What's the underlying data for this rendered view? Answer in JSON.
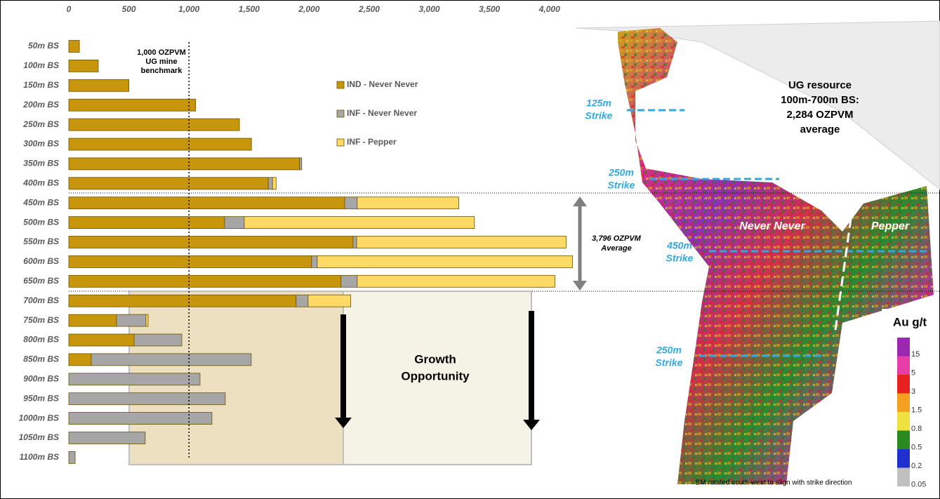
{
  "chart_data": {
    "type": "stacked-barh",
    "categories": [
      "50m BS",
      "100m BS",
      "150m BS",
      "200m BS",
      "250m BS",
      "300m BS",
      "350m BS",
      "400m BS",
      "450m BS",
      "500m BS",
      "550m BS",
      "600m BS",
      "650m BS",
      "700m BS",
      "750m BS",
      "800m BS",
      "850m BS",
      "900m BS",
      "950m BS",
      "1000m BS",
      "1050m BS",
      "1100m BS"
    ],
    "series": [
      {
        "name": "IND - Never Never",
        "color": "#c8960c",
        "values": [
          88,
          245,
          500,
          1055,
          1420,
          1520,
          1920,
          1660,
          2295,
          1296,
          2365,
          2020,
          2265,
          1891,
          397,
          543,
          187,
          null,
          null,
          null,
          null,
          null
        ]
      },
      {
        "name": "INF - Never Never",
        "color": "#a6a6a6",
        "values": [
          null,
          null,
          null,
          null,
          null,
          null,
          18,
          35,
          105,
          164,
          30,
          47,
          135,
          100,
          245,
          397,
          1331,
          1092,
          1302,
          1191,
          636,
          53
        ]
      },
      {
        "name": "INF - Pepper",
        "color": "#ffd966",
        "values": [
          null,
          null,
          null,
          null,
          null,
          null,
          null,
          30,
          845,
          1915,
          1743,
          2125,
          1645,
          355,
          18,
          null,
          null,
          null,
          null,
          null,
          null,
          null
        ]
      }
    ],
    "xlim": [
      0,
      4200
    ],
    "xticks": [
      0,
      500,
      {
        "value": 1000,
        "label": "1,000"
      },
      {
        "value": 1500,
        "label": "1,500"
      },
      {
        "value": 2000,
        "label": "2,000"
      },
      {
        "value": 2500,
        "label": "2,500"
      },
      {
        "value": 3000,
        "label": "3,000"
      },
      {
        "value": 3500,
        "label": "3,500"
      },
      {
        "value": 4000,
        "label": "4,000"
      }
    ],
    "benchmark_label": [
      "1,000 OZPVM",
      "UG mine",
      "benchmark"
    ],
    "average_label": [
      "3,796 OZPVM",
      "Average"
    ],
    "growth_label": [
      "Growth",
      "Opportunity"
    ]
  },
  "model": {
    "summary": [
      "UG resource",
      "100m-700m BS:",
      "2,284 OZPVM",
      "average"
    ],
    "strikes": [
      [
        "125m",
        "Strike"
      ],
      [
        "250m",
        "Strike"
      ],
      [
        "450m",
        "Strike"
      ],
      [
        "250m",
        "Strike"
      ]
    ],
    "zones": [
      "Never Never",
      "Pepper"
    ],
    "colorbar_title": "Au g/t",
    "colorbar_labels": [
      15,
      5,
      3,
      1.5,
      0.8,
      0.5,
      0.2,
      0.05
    ],
    "caption": "BM rotated south-west to align with strike direction"
  }
}
